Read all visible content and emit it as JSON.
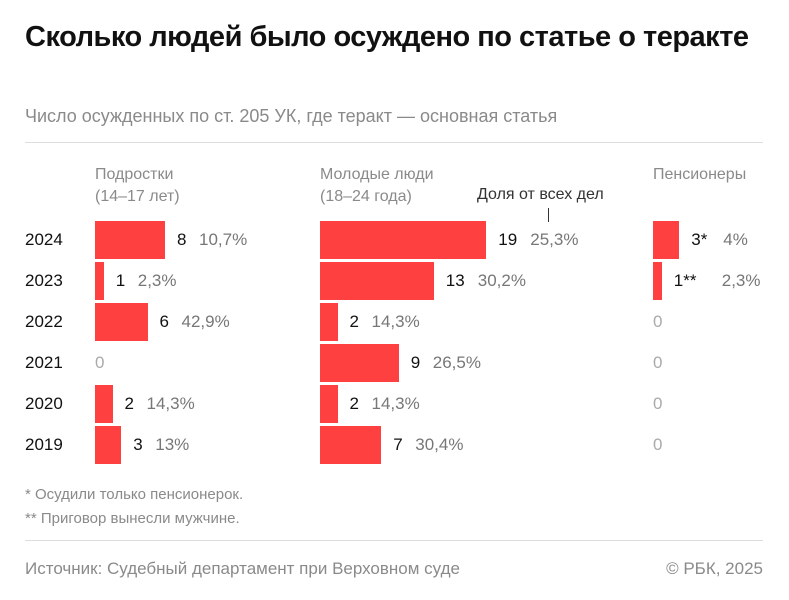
{
  "title": "Сколько людей было осуждено по статье о теракте",
  "subtitle": "Число осужденных по ст. 205 УК, где теракт — основная статья",
  "chart_data": {
    "type": "bar",
    "orientation": "horizontal",
    "categories": [
      "2024",
      "2023",
      "2022",
      "2021",
      "2020",
      "2019"
    ],
    "share_label": "Доля от всех дел",
    "bar_color": "#ff4040",
    "series": [
      {
        "name": "Подростки",
        "name_line2": "(14–17 лет)",
        "values": [
          8,
          1,
          6,
          0,
          2,
          3
        ],
        "value_labels": [
          "8",
          "1",
          "6",
          "0",
          "2",
          "3"
        ],
        "shares": [
          "10,7%",
          "2,3%",
          "42,9%",
          "",
          "14,3%",
          "13%"
        ]
      },
      {
        "name": "Молодые люди",
        "name_line2": "(18–24 года)",
        "values": [
          19,
          13,
          2,
          9,
          2,
          7
        ],
        "value_labels": [
          "19",
          "13",
          "2",
          "9",
          "2",
          "7"
        ],
        "shares": [
          "25,3%",
          "30,2%",
          "14,3%",
          "26,5%",
          "14,3%",
          "30,4%"
        ]
      },
      {
        "name": "Пенсионеры",
        "name_line2": "",
        "values": [
          3,
          1,
          0,
          0,
          0,
          0
        ],
        "value_labels": [
          "3*",
          "1**",
          "0",
          "0",
          "0",
          "0"
        ],
        "shares": [
          "4%",
          "2,3%",
          "",
          "",
          "",
          ""
        ]
      }
    ]
  },
  "notes": [
    "* Осудили только пенсионерок.",
    "** Приговор вынесли мужчине."
  ],
  "footer": {
    "source": "Источник: Судебный департамент при Верховном суде",
    "copyright": "© РБК, 2025"
  }
}
